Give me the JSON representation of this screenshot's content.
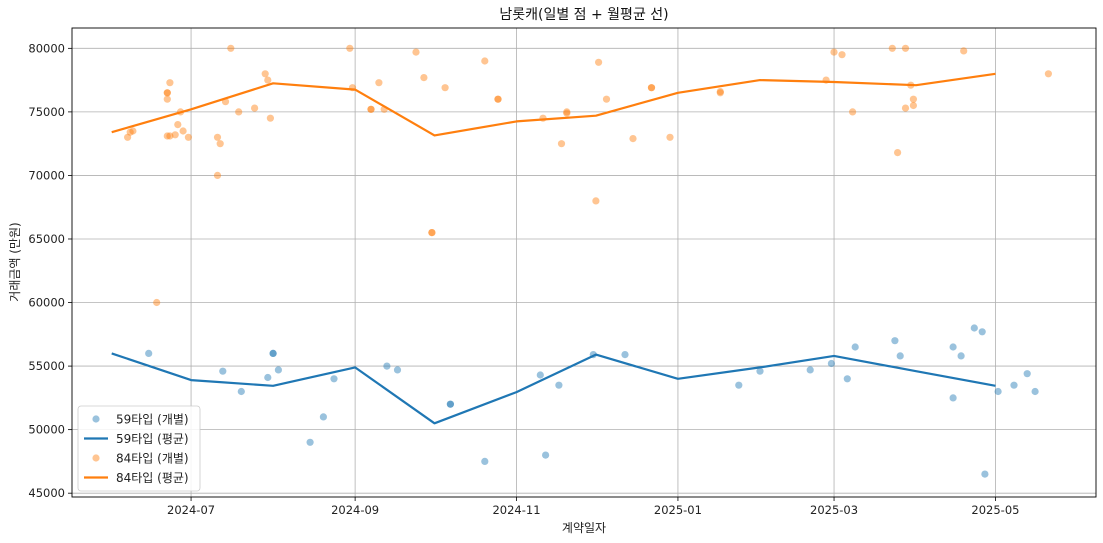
{
  "chart_data": {
    "type": "line",
    "title": "남롯캐(일별 점 + 월평균 선)",
    "xlabel": "계약일자",
    "ylabel": "거래금액 (만원)",
    "xlim": [
      "2024-05-17",
      "2025-06-08"
    ],
    "ylim": [
      44700,
      81600
    ],
    "x_ticks": [
      "2024-07",
      "2024-09",
      "2024-11",
      "2025-01",
      "2025-03",
      "2025-05"
    ],
    "y_ticks": [
      45000,
      50000,
      55000,
      60000,
      65000,
      70000,
      75000,
      80000
    ],
    "grid": true,
    "legend_position": "bottom-left",
    "series": [
      {
        "name": "59타입 (개별)",
        "kind": "scatter",
        "color": "#1f77b4",
        "points": [
          [
            "2024-06-15",
            56000
          ],
          [
            "2024-07-13",
            54600
          ],
          [
            "2024-07-20",
            53000
          ],
          [
            "2024-07-30",
            54100
          ],
          [
            "2024-08-01",
            56000
          ],
          [
            "2024-08-01",
            56000
          ],
          [
            "2024-08-03",
            54700
          ],
          [
            "2024-08-15",
            49000
          ],
          [
            "2024-08-20",
            51000
          ],
          [
            "2024-08-24",
            54000
          ],
          [
            "2024-09-13",
            55000
          ],
          [
            "2024-09-17",
            54700
          ],
          [
            "2024-10-07",
            52000
          ],
          [
            "2024-10-07",
            52000
          ],
          [
            "2024-10-20",
            47500
          ],
          [
            "2024-11-10",
            54300
          ],
          [
            "2024-11-12",
            48000
          ],
          [
            "2024-11-17",
            53500
          ],
          [
            "2024-11-30",
            55900
          ],
          [
            "2024-12-12",
            55900
          ],
          [
            "2025-01-24",
            53500
          ],
          [
            "2025-02-01",
            54600
          ],
          [
            "2025-02-20",
            54700
          ],
          [
            "2025-02-28",
            55200
          ],
          [
            "2025-03-06",
            54000
          ],
          [
            "2025-03-09",
            56500
          ],
          [
            "2025-03-24",
            57000
          ],
          [
            "2025-03-26",
            55800
          ],
          [
            "2025-04-15",
            56500
          ],
          [
            "2025-04-15",
            52500
          ],
          [
            "2025-04-18",
            55800
          ],
          [
            "2025-04-23",
            58000
          ],
          [
            "2025-04-26",
            57700
          ],
          [
            "2025-04-27",
            46500
          ],
          [
            "2025-05-02",
            53000
          ],
          [
            "2025-05-08",
            53500
          ],
          [
            "2025-05-13",
            54400
          ],
          [
            "2025-05-16",
            53000
          ]
        ]
      },
      {
        "name": "59타입 (평균)",
        "kind": "line",
        "color": "#1f77b4",
        "points": [
          [
            "2024-06-01",
            56000
          ],
          [
            "2024-07-01",
            53900
          ],
          [
            "2024-08-01",
            53450
          ],
          [
            "2024-09-01",
            54900
          ],
          [
            "2024-10-01",
            50500
          ],
          [
            "2024-11-01",
            52950
          ],
          [
            "2024-12-01",
            55900
          ],
          [
            "2025-01-01",
            54000
          ],
          [
            "2025-02-01",
            54900
          ],
          [
            "2025-03-01",
            55800
          ],
          [
            "2025-04-01",
            54600
          ],
          [
            "2025-05-01",
            53450
          ]
        ]
      },
      {
        "name": "84타입 (개별)",
        "kind": "scatter",
        "color": "#ff7f0e",
        "points": [
          [
            "2024-06-07",
            73000
          ],
          [
            "2024-06-08",
            73400
          ],
          [
            "2024-06-09",
            73500
          ],
          [
            "2024-06-18",
            60000
          ],
          [
            "2024-06-22",
            76000
          ],
          [
            "2024-06-22",
            76500
          ],
          [
            "2024-06-22",
            76500
          ],
          [
            "2024-06-22",
            73100
          ],
          [
            "2024-06-23",
            73100
          ],
          [
            "2024-06-23",
            77300
          ],
          [
            "2024-06-25",
            73200
          ],
          [
            "2024-06-26",
            74000
          ],
          [
            "2024-06-27",
            75000
          ],
          [
            "2024-06-28",
            73500
          ],
          [
            "2024-06-30",
            73000
          ],
          [
            "2024-07-11",
            73000
          ],
          [
            "2024-07-11",
            70000
          ],
          [
            "2024-07-12",
            72500
          ],
          [
            "2024-07-14",
            75800
          ],
          [
            "2024-07-16",
            80000
          ],
          [
            "2024-07-19",
            75000
          ],
          [
            "2024-07-25",
            75300
          ],
          [
            "2024-07-29",
            78000
          ],
          [
            "2024-07-30",
            77500
          ],
          [
            "2024-07-31",
            74500
          ],
          [
            "2024-08-30",
            80000
          ],
          [
            "2024-08-31",
            76900
          ],
          [
            "2024-09-07",
            75200
          ],
          [
            "2024-09-07",
            75200
          ],
          [
            "2024-09-10",
            77300
          ],
          [
            "2024-09-12",
            75200
          ],
          [
            "2024-09-24",
            79700
          ],
          [
            "2024-09-27",
            77700
          ],
          [
            "2024-09-30",
            65500
          ],
          [
            "2024-09-30",
            65500
          ],
          [
            "2024-10-05",
            76900
          ],
          [
            "2024-10-20",
            79000
          ],
          [
            "2024-10-25",
            76000
          ],
          [
            "2024-10-25",
            76000
          ],
          [
            "2024-11-11",
            74500
          ],
          [
            "2024-11-18",
            72500
          ],
          [
            "2024-11-20",
            75000
          ],
          [
            "2024-11-20",
            74900
          ],
          [
            "2024-12-01",
            68000
          ],
          [
            "2024-12-02",
            78900
          ],
          [
            "2024-12-05",
            76000
          ],
          [
            "2024-12-15",
            72900
          ],
          [
            "2024-12-22",
            76900
          ],
          [
            "2024-12-22",
            76900
          ],
          [
            "2024-12-29",
            73000
          ],
          [
            "2025-01-17",
            76500
          ],
          [
            "2025-01-17",
            76600
          ],
          [
            "2025-02-26",
            77500
          ],
          [
            "2025-03-01",
            79700
          ],
          [
            "2025-03-04",
            79500
          ],
          [
            "2025-03-08",
            75000
          ],
          [
            "2025-03-23",
            80000
          ],
          [
            "2025-03-25",
            71800
          ],
          [
            "2025-03-28",
            80000
          ],
          [
            "2025-03-28",
            75300
          ],
          [
            "2025-03-30",
            77100
          ],
          [
            "2025-03-31",
            76000
          ],
          [
            "2025-03-31",
            75500
          ],
          [
            "2025-04-19",
            79800
          ],
          [
            "2025-05-21",
            78000
          ]
        ]
      },
      {
        "name": "84타입 (평균)",
        "kind": "line",
        "color": "#ff7f0e",
        "points": [
          [
            "2024-06-01",
            73400
          ],
          [
            "2024-07-01",
            75200
          ],
          [
            "2024-08-01",
            77250
          ],
          [
            "2024-09-01",
            76750
          ],
          [
            "2024-10-01",
            73150
          ],
          [
            "2024-11-01",
            74250
          ],
          [
            "2024-12-01",
            74700
          ],
          [
            "2025-01-01",
            76500
          ],
          [
            "2025-02-01",
            77500
          ],
          [
            "2025-03-01",
            77350
          ],
          [
            "2025-04-01",
            77100
          ],
          [
            "2025-05-01",
            78000
          ]
        ]
      }
    ]
  }
}
